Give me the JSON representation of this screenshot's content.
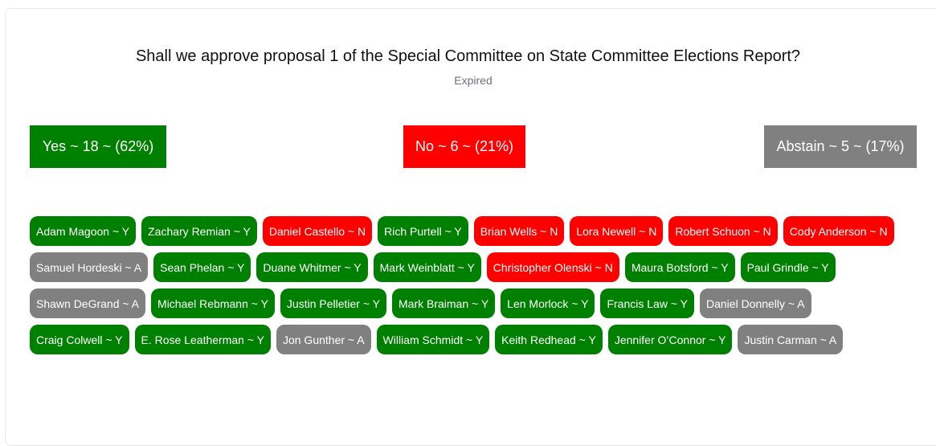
{
  "question": "Shall we approve proposal 1 of the Special Committee on State Committee Elections Report?",
  "status": "Expired",
  "tallies": {
    "yes": "Yes ~ 18 ~ (62%)",
    "no": "No ~ 6 ~ (21%)",
    "abstain": "Abstain ~ 5 ~ (17%)"
  },
  "colors": {
    "yes": "#008000",
    "no": "#ff0000",
    "abstain": "#808080"
  },
  "voters": [
    {
      "label": "Adam Magoon ~ Y",
      "vote": "Y"
    },
    {
      "label": "Zachary Remian ~ Y",
      "vote": "Y"
    },
    {
      "label": "Daniel Castello ~ N",
      "vote": "N"
    },
    {
      "label": "Rich Purtell ~ Y",
      "vote": "Y"
    },
    {
      "label": "Brian Wells ~ N",
      "vote": "N"
    },
    {
      "label": "Lora Newell ~ N",
      "vote": "N"
    },
    {
      "label": "Robert Schuon ~ N",
      "vote": "N"
    },
    {
      "label": "Cody Anderson ~ N",
      "vote": "N"
    },
    {
      "label": "Samuel Hordeski ~ A",
      "vote": "A"
    },
    {
      "label": "Sean Phelan ~ Y",
      "vote": "Y"
    },
    {
      "label": "Duane Whitmer ~ Y",
      "vote": "Y"
    },
    {
      "label": "Mark Weinblatt ~ Y",
      "vote": "Y"
    },
    {
      "label": "Christopher Olenski ~ N",
      "vote": "N"
    },
    {
      "label": "Maura Botsford ~ Y",
      "vote": "Y"
    },
    {
      "label": "Paul Grindle ~ Y",
      "vote": "Y"
    },
    {
      "label": "Shawn DeGrand ~ A",
      "vote": "A"
    },
    {
      "label": "Michael Rebmann ~ Y",
      "vote": "Y"
    },
    {
      "label": "Justin Pelletier ~ Y",
      "vote": "Y"
    },
    {
      "label": "Mark Braiman ~ Y",
      "vote": "Y"
    },
    {
      "label": "Len Morlock ~ Y",
      "vote": "Y"
    },
    {
      "label": "Francis Law ~ Y",
      "vote": "Y"
    },
    {
      "label": "Daniel Donnelly ~ A",
      "vote": "A"
    },
    {
      "label": "Craig Colwell ~ Y",
      "vote": "Y"
    },
    {
      "label": "E. Rose Leatherman ~ Y",
      "vote": "Y"
    },
    {
      "label": "Jon Gunther ~ A",
      "vote": "A"
    },
    {
      "label": "William Schmidt ~ Y",
      "vote": "Y"
    },
    {
      "label": "Keith Redhead ~ Y",
      "vote": "Y"
    },
    {
      "label": "Jennifer O’Connor ~ Y",
      "vote": "Y"
    },
    {
      "label": "Justin Carman ~ A",
      "vote": "A"
    }
  ]
}
